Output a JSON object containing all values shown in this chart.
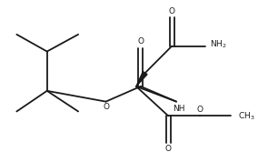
{
  "bg_color": "#ffffff",
  "line_color": "#1a1a1a",
  "line_width": 1.3,
  "font_size": 6.5,
  "figsize": [
    2.84,
    1.78
  ],
  "dpi": 100,
  "xlim": [
    0,
    10
  ],
  "ylim": [
    0,
    6.28
  ]
}
